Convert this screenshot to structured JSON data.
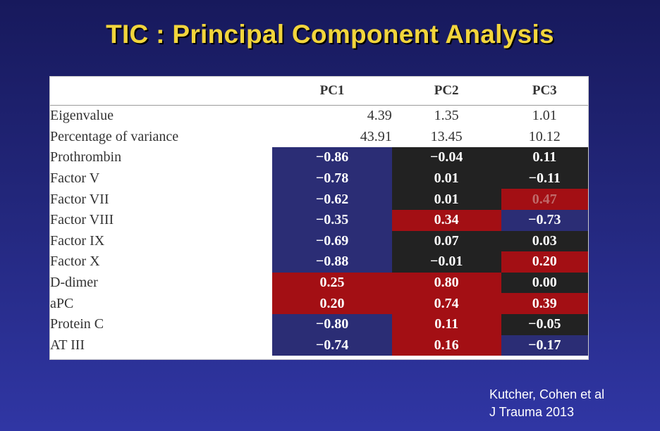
{
  "title": "TIC : Principal Component Analysis",
  "table": {
    "columns": [
      "",
      "PC1",
      "PC2",
      "PC3"
    ],
    "rows": [
      {
        "label": "Eigenvalue",
        "values": [
          "4.39",
          "1.35",
          "1.01"
        ]
      },
      {
        "label": "Percentage of variance",
        "values": [
          "43.91",
          "13.45",
          "10.12"
        ]
      },
      {
        "label": "Prothrombin",
        "values": [
          "−0.86",
          "−0.04",
          "0.11"
        ]
      },
      {
        "label": "Factor V",
        "values": [
          "−0.78",
          "0.01",
          "−0.11"
        ]
      },
      {
        "label": "Factor VII",
        "values": [
          "−0.62",
          "0.01",
          "0.47"
        ]
      },
      {
        "label": "Factor VIII",
        "values": [
          "−0.35",
          "0.34",
          "−0.73"
        ]
      },
      {
        "label": "Factor IX",
        "values": [
          "−0.69",
          "0.07",
          "0.03"
        ]
      },
      {
        "label": "Factor X",
        "values": [
          "−0.88",
          "−0.01",
          "0.20"
        ]
      },
      {
        "label": "D-dimer",
        "values": [
          "0.25",
          "0.80",
          "0.00"
        ]
      },
      {
        "label": "aPC",
        "values": [
          "0.20",
          "0.74",
          "0.39"
        ]
      },
      {
        "label": "Protein C",
        "values": [
          "−0.80",
          "0.11",
          "−0.05"
        ]
      },
      {
        "label": "AT III",
        "values": [
          "−0.74",
          "0.16",
          "−0.17"
        ]
      }
    ],
    "cell_colors": {
      "blue": "#2b2d75",
      "red": "#a30f14",
      "black": "#222222"
    }
  },
  "citation": {
    "line1": "Kutcher, Cohen et al",
    "line2": "J Trauma 2013"
  }
}
